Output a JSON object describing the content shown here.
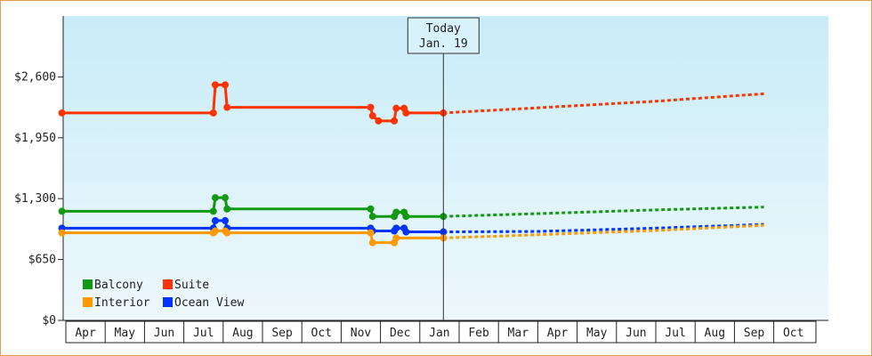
{
  "chart_data": {
    "type": "line",
    "ylim": [
      0,
      3250
    ],
    "y_ticks": [
      {
        "value": 0,
        "label": "$0"
      },
      {
        "value": 650,
        "label": "$650"
      },
      {
        "value": 1300,
        "label": "$1,300"
      },
      {
        "value": 1950,
        "label": "$1,950"
      },
      {
        "value": 2600,
        "label": "$2,600"
      }
    ],
    "x_range": [
      0,
      17.75
    ],
    "months": [
      "Apr",
      "May",
      "Jun",
      "Jul",
      "Aug",
      "Sep",
      "Oct",
      "Nov",
      "Dec",
      "Jan",
      "Feb",
      "Mar",
      "Apr",
      "May",
      "Jun",
      "Jul",
      "Aug",
      "Sep",
      "Oct"
    ],
    "today": {
      "line1": "Today",
      "line2": "Jan. 19",
      "x": 9.6
    },
    "grid": false,
    "legend_position": "bottom-left",
    "background_gradient": [
      "#c8ecf8",
      "#eef8fc"
    ],
    "series": [
      {
        "name": "Suite",
        "color": "#ff3300",
        "points": [
          [
            -0.1,
            2215
          ],
          [
            3.75,
            2215
          ],
          [
            3.8,
            2515
          ],
          [
            4.05,
            2515
          ],
          [
            4.1,
            2275
          ],
          [
            7.75,
            2275
          ],
          [
            7.8,
            2185
          ],
          [
            7.95,
            2130
          ],
          [
            8.35,
            2130
          ],
          [
            8.4,
            2265
          ],
          [
            8.6,
            2265
          ],
          [
            8.65,
            2215
          ],
          [
            9.6,
            2215
          ]
        ],
        "forecast": [
          [
            9.6,
            2215
          ],
          [
            12.0,
            2270
          ],
          [
            15.0,
            2340
          ],
          [
            17.75,
            2420
          ]
        ]
      },
      {
        "name": "Balcony",
        "color": "#119911",
        "points": [
          [
            -0.1,
            1165
          ],
          [
            3.75,
            1165
          ],
          [
            3.8,
            1310
          ],
          [
            4.05,
            1310
          ],
          [
            4.1,
            1190
          ],
          [
            7.75,
            1190
          ],
          [
            7.8,
            1110
          ],
          [
            8.35,
            1110
          ],
          [
            8.4,
            1155
          ],
          [
            8.6,
            1155
          ],
          [
            8.65,
            1110
          ],
          [
            9.6,
            1110
          ]
        ],
        "forecast": [
          [
            9.6,
            1110
          ],
          [
            12.0,
            1140
          ],
          [
            15.0,
            1180
          ],
          [
            17.75,
            1210
          ]
        ]
      },
      {
        "name": "Ocean View",
        "color": "#0033ff",
        "points": [
          [
            -0.1,
            985
          ],
          [
            3.75,
            985
          ],
          [
            3.8,
            1065
          ],
          [
            4.05,
            1065
          ],
          [
            4.1,
            985
          ],
          [
            7.75,
            985
          ],
          [
            7.8,
            955
          ],
          [
            8.35,
            955
          ],
          [
            8.4,
            985
          ],
          [
            8.6,
            985
          ],
          [
            8.65,
            945
          ],
          [
            9.6,
            945
          ]
        ],
        "forecast": [
          [
            9.6,
            945
          ],
          [
            12.0,
            950
          ],
          [
            15.0,
            985
          ],
          [
            17.75,
            1025
          ]
        ]
      },
      {
        "name": "Interior",
        "color": "#ff9900",
        "points": [
          [
            -0.1,
            935
          ],
          [
            3.75,
            935
          ],
          [
            3.8,
            955
          ],
          [
            4.05,
            955
          ],
          [
            4.1,
            935
          ],
          [
            7.75,
            935
          ],
          [
            7.8,
            830
          ],
          [
            8.35,
            830
          ],
          [
            8.4,
            880
          ],
          [
            8.6,
            880
          ],
          [
            8.65,
            880
          ],
          [
            9.6,
            880
          ]
        ],
        "forecast": [
          [
            9.6,
            880
          ],
          [
            12.0,
            915
          ],
          [
            15.0,
            960
          ],
          [
            17.75,
            1015
          ]
        ]
      }
    ],
    "legend": [
      {
        "name": "Balcony",
        "color": "#119911"
      },
      {
        "name": "Suite",
        "color": "#ff3300"
      },
      {
        "name": "Interior",
        "color": "#ff9900"
      },
      {
        "name": "Ocean View",
        "color": "#0033ff"
      }
    ]
  }
}
